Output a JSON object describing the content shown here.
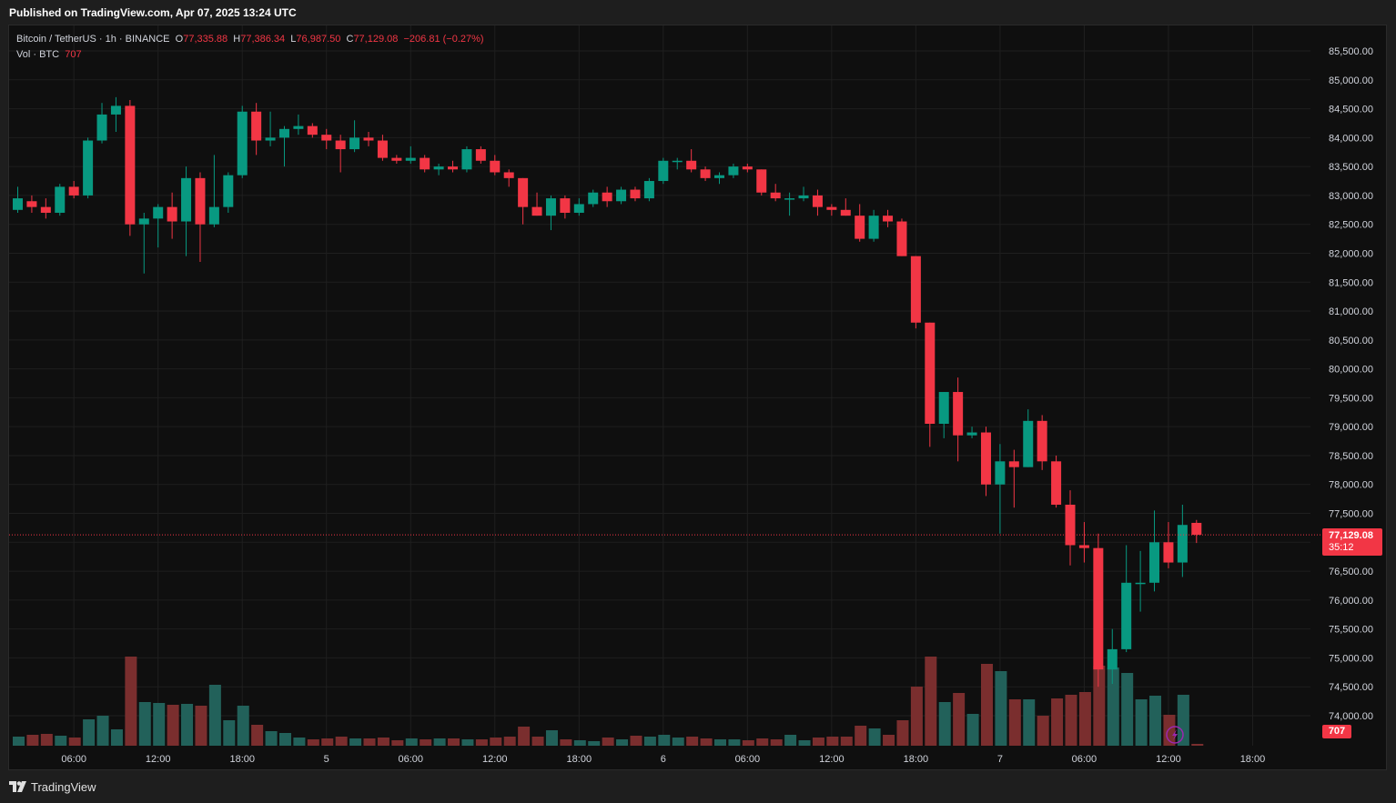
{
  "header": {
    "published": "Published on TradingView.com, Apr 07, 2025 13:24 UTC"
  },
  "legend": {
    "symbol": "Bitcoin / TetherUS · 1h · BINANCE",
    "o_label": "O",
    "o_value": "77,335.88",
    "h_label": "H",
    "h_value": "77,386.34",
    "l_label": "L",
    "l_value": "76,987.50",
    "c_label": "C",
    "c_value": "77,129.08",
    "change": "−206.81 (−0.27%)",
    "vol_label": "Vol · BTC",
    "vol_value": "707"
  },
  "last_price": {
    "price": "77,129.08",
    "countdown": "35:12"
  },
  "footer": {
    "brand": "TradingView"
  },
  "colors": {
    "up": "#089981",
    "down": "#f23645",
    "vol_up": "#22615a",
    "vol_down": "#7a2e2e",
    "grid": "#1f1f1f",
    "text": "#d1d4dc"
  },
  "chart_data": {
    "type": "candlestick",
    "price_range": [
      73500,
      85900
    ],
    "y_ticks": [
      74000,
      74500,
      75000,
      75500,
      76000,
      76500,
      77000,
      77500,
      78000,
      78500,
      79000,
      79500,
      80000,
      80500,
      81000,
      81500,
      82000,
      82500,
      83000,
      83500,
      84000,
      84500,
      85000,
      85500
    ],
    "y_tick_labels": [
      "74,000.00",
      "74,500.00",
      "75,000.00",
      "75,500.00",
      "76,000.00",
      "76,500.00",
      "77,000.00",
      "77,500.00",
      "78,000.00",
      "78,500.00",
      "79,000.00",
      "79,500.00",
      "80,000.00",
      "80,500.00",
      "81,000.00",
      "81,500.00",
      "82,000.00",
      "82,500.00",
      "83,000.00",
      "83,500.00",
      "84,000.00",
      "84,500.00",
      "85,000.00",
      "85,500.00"
    ],
    "x_ticks": [
      {
        "index": 4,
        "label": "06:00"
      },
      {
        "index": 10,
        "label": "12:00"
      },
      {
        "index": 16,
        "label": "18:00"
      },
      {
        "index": 22,
        "label": "5"
      },
      {
        "index": 28,
        "label": "06:00"
      },
      {
        "index": 34,
        "label": "12:00"
      },
      {
        "index": 40,
        "label": "18:00"
      },
      {
        "index": 46,
        "label": "6"
      },
      {
        "index": 52,
        "label": "06:00"
      },
      {
        "index": 58,
        "label": "12:00"
      },
      {
        "index": 64,
        "label": "18:00"
      },
      {
        "index": 70,
        "label": "7"
      },
      {
        "index": 76,
        "label": "06:00"
      },
      {
        "index": 82,
        "label": "12:00"
      },
      {
        "index": 88,
        "label": "18:00"
      }
    ],
    "candles": [
      {
        "o": 82750,
        "h": 83150,
        "l": 82700,
        "c": 82950,
        "v": 0.1
      },
      {
        "o": 82900,
        "h": 83000,
        "l": 82700,
        "c": 82800,
        "v": 0.12
      },
      {
        "o": 82800,
        "h": 82950,
        "l": 82600,
        "c": 82700,
        "v": 0.13
      },
      {
        "o": 82700,
        "h": 83200,
        "l": 82650,
        "c": 83150,
        "v": 0.11
      },
      {
        "o": 83150,
        "h": 83250,
        "l": 82950,
        "c": 83000,
        "v": 0.09
      },
      {
        "o": 83000,
        "h": 84000,
        "l": 82950,
        "c": 83950,
        "v": 0.29
      },
      {
        "o": 83950,
        "h": 84600,
        "l": 83900,
        "c": 84400,
        "v": 0.33
      },
      {
        "o": 84400,
        "h": 84700,
        "l": 84100,
        "c": 84550,
        "v": 0.18
      },
      {
        "o": 84550,
        "h": 84650,
        "l": 82300,
        "c": 82500,
        "v": 0.98
      },
      {
        "o": 82500,
        "h": 82700,
        "l": 81650,
        "c": 82600,
        "v": 0.48
      },
      {
        "o": 82600,
        "h": 82850,
        "l": 82100,
        "c": 82800,
        "v": 0.47
      },
      {
        "o": 82800,
        "h": 83050,
        "l": 82250,
        "c": 82550,
        "v": 0.45
      },
      {
        "o": 82550,
        "h": 83500,
        "l": 81950,
        "c": 83300,
        "v": 0.46
      },
      {
        "o": 83300,
        "h": 83400,
        "l": 81850,
        "c": 82500,
        "v": 0.44
      },
      {
        "o": 82500,
        "h": 83700,
        "l": 82450,
        "c": 82800,
        "v": 0.67
      },
      {
        "o": 82800,
        "h": 83400,
        "l": 82700,
        "c": 83350,
        "v": 0.28
      },
      {
        "o": 83350,
        "h": 84550,
        "l": 83300,
        "c": 84450,
        "v": 0.44
      },
      {
        "o": 84450,
        "h": 84600,
        "l": 83700,
        "c": 83950,
        "v": 0.23
      },
      {
        "o": 83950,
        "h": 84450,
        "l": 83850,
        "c": 84000,
        "v": 0.16
      },
      {
        "o": 84000,
        "h": 84200,
        "l": 83500,
        "c": 84150,
        "v": 0.14
      },
      {
        "o": 84150,
        "h": 84400,
        "l": 84050,
        "c": 84200,
        "v": 0.09
      },
      {
        "o": 84200,
        "h": 84250,
        "l": 84000,
        "c": 84050,
        "v": 0.07
      },
      {
        "o": 84050,
        "h": 84150,
        "l": 83800,
        "c": 83950,
        "v": 0.08
      },
      {
        "o": 83950,
        "h": 84050,
        "l": 83400,
        "c": 83800,
        "v": 0.1
      },
      {
        "o": 83800,
        "h": 84300,
        "l": 83750,
        "c": 84000,
        "v": 0.08
      },
      {
        "o": 84000,
        "h": 84100,
        "l": 83850,
        "c": 83950,
        "v": 0.08
      },
      {
        "o": 83950,
        "h": 84050,
        "l": 83600,
        "c": 83650,
        "v": 0.09
      },
      {
        "o": 83650,
        "h": 83700,
        "l": 83550,
        "c": 83600,
        "v": 0.06
      },
      {
        "o": 83600,
        "h": 83850,
        "l": 83550,
        "c": 83650,
        "v": 0.08
      },
      {
        "o": 83650,
        "h": 83700,
        "l": 83400,
        "c": 83450,
        "v": 0.07
      },
      {
        "o": 83450,
        "h": 83550,
        "l": 83350,
        "c": 83500,
        "v": 0.08
      },
      {
        "o": 83500,
        "h": 83600,
        "l": 83400,
        "c": 83450,
        "v": 0.08
      },
      {
        "o": 83450,
        "h": 83850,
        "l": 83400,
        "c": 83800,
        "v": 0.07
      },
      {
        "o": 83800,
        "h": 83850,
        "l": 83550,
        "c": 83600,
        "v": 0.07
      },
      {
        "o": 83600,
        "h": 83700,
        "l": 83350,
        "c": 83400,
        "v": 0.09
      },
      {
        "o": 83400,
        "h": 83450,
        "l": 83150,
        "c": 83300,
        "v": 0.1
      },
      {
        "o": 83300,
        "h": 83300,
        "l": 82500,
        "c": 82800,
        "v": 0.21
      },
      {
        "o": 82800,
        "h": 83050,
        "l": 82650,
        "c": 82650,
        "v": 0.1
      },
      {
        "o": 82650,
        "h": 83000,
        "l": 82400,
        "c": 82950,
        "v": 0.17
      },
      {
        "o": 82950,
        "h": 83000,
        "l": 82600,
        "c": 82700,
        "v": 0.07
      },
      {
        "o": 82700,
        "h": 82950,
        "l": 82650,
        "c": 82850,
        "v": 0.06
      },
      {
        "o": 82850,
        "h": 83100,
        "l": 82800,
        "c": 83050,
        "v": 0.05
      },
      {
        "o": 83050,
        "h": 83150,
        "l": 82800,
        "c": 82900,
        "v": 0.09
      },
      {
        "o": 82900,
        "h": 83150,
        "l": 82850,
        "c": 83100,
        "v": 0.07
      },
      {
        "o": 83100,
        "h": 83150,
        "l": 82900,
        "c": 82950,
        "v": 0.11
      },
      {
        "o": 82950,
        "h": 83300,
        "l": 82900,
        "c": 83250,
        "v": 0.1
      },
      {
        "o": 83250,
        "h": 83650,
        "l": 83200,
        "c": 83600,
        "v": 0.12
      },
      {
        "o": 83600,
        "h": 83650,
        "l": 83450,
        "c": 83600,
        "v": 0.09
      },
      {
        "o": 83600,
        "h": 83800,
        "l": 83400,
        "c": 83450,
        "v": 0.1
      },
      {
        "o": 83450,
        "h": 83500,
        "l": 83250,
        "c": 83300,
        "v": 0.08
      },
      {
        "o": 83300,
        "h": 83400,
        "l": 83200,
        "c": 83350,
        "v": 0.07
      },
      {
        "o": 83350,
        "h": 83550,
        "l": 83300,
        "c": 83500,
        "v": 0.07
      },
      {
        "o": 83500,
        "h": 83550,
        "l": 83400,
        "c": 83450,
        "v": 0.06
      },
      {
        "o": 83450,
        "h": 83450,
        "l": 83000,
        "c": 83050,
        "v": 0.08
      },
      {
        "o": 83050,
        "h": 83200,
        "l": 82900,
        "c": 82950,
        "v": 0.07
      },
      {
        "o": 82950,
        "h": 83050,
        "l": 82650,
        "c": 82950,
        "v": 0.12
      },
      {
        "o": 82950,
        "h": 83150,
        "l": 82900,
        "c": 83000,
        "v": 0.06
      },
      {
        "o": 83000,
        "h": 83100,
        "l": 82650,
        "c": 82800,
        "v": 0.09
      },
      {
        "o": 82800,
        "h": 82850,
        "l": 82650,
        "c": 82750,
        "v": 0.1
      },
      {
        "o": 82750,
        "h": 82950,
        "l": 82650,
        "c": 82650,
        "v": 0.1
      },
      {
        "o": 82650,
        "h": 82850,
        "l": 82200,
        "c": 82250,
        "v": 0.22
      },
      {
        "o": 82250,
        "h": 82750,
        "l": 82200,
        "c": 82650,
        "v": 0.19
      },
      {
        "o": 82650,
        "h": 82750,
        "l": 82450,
        "c": 82550,
        "v": 0.12
      },
      {
        "o": 82550,
        "h": 82600,
        "l": 81950,
        "c": 81950,
        "v": 0.28
      },
      {
        "o": 81950,
        "h": 81950,
        "l": 80700,
        "c": 80800,
        "v": 0.65
      },
      {
        "o": 80800,
        "h": 80800,
        "l": 78650,
        "c": 79050,
        "v": 0.98
      },
      {
        "o": 79050,
        "h": 79600,
        "l": 78800,
        "c": 79600,
        "v": 0.48
      },
      {
        "o": 79600,
        "h": 79850,
        "l": 78400,
        "c": 78850,
        "v": 0.58
      },
      {
        "o": 78850,
        "h": 79000,
        "l": 78800,
        "c": 78900,
        "v": 0.35
      },
      {
        "o": 78900,
        "h": 79000,
        "l": 77800,
        "c": 78000,
        "v": 0.9
      },
      {
        "o": 78000,
        "h": 78700,
        "l": 77150,
        "c": 78400,
        "v": 0.82
      },
      {
        "o": 78400,
        "h": 78600,
        "l": 77600,
        "c": 78300,
        "v": 0.51
      },
      {
        "o": 78300,
        "h": 79300,
        "l": 78300,
        "c": 79100,
        "v": 0.51
      },
      {
        "o": 79100,
        "h": 79200,
        "l": 78250,
        "c": 78400,
        "v": 0.33
      },
      {
        "o": 78400,
        "h": 78500,
        "l": 77600,
        "c": 77650,
        "v": 0.52
      },
      {
        "o": 77650,
        "h": 77900,
        "l": 76600,
        "c": 76950,
        "v": 0.56
      },
      {
        "o": 76950,
        "h": 77350,
        "l": 76650,
        "c": 76900,
        "v": 0.59
      },
      {
        "o": 76900,
        "h": 77150,
        "l": 74500,
        "c": 74800,
        "v": 0.88
      },
      {
        "o": 74800,
        "h": 75500,
        "l": 74550,
        "c": 75150,
        "v": 0.86
      },
      {
        "o": 75150,
        "h": 76950,
        "l": 75100,
        "c": 76300,
        "v": 0.8
      },
      {
        "o": 76300,
        "h": 76850,
        "l": 75800,
        "c": 76300,
        "v": 0.51
      },
      {
        "o": 76300,
        "h": 77550,
        "l": 76150,
        "c": 77000,
        "v": 0.55
      },
      {
        "o": 77000,
        "h": 77350,
        "l": 76550,
        "c": 76650,
        "v": 0.34
      },
      {
        "o": 76650,
        "h": 77650,
        "l": 76400,
        "c": 77300,
        "v": 0.56
      },
      {
        "o": 77335.88,
        "h": 77386.34,
        "l": 76987.5,
        "c": 77129.08,
        "v": 0.02
      }
    ]
  }
}
